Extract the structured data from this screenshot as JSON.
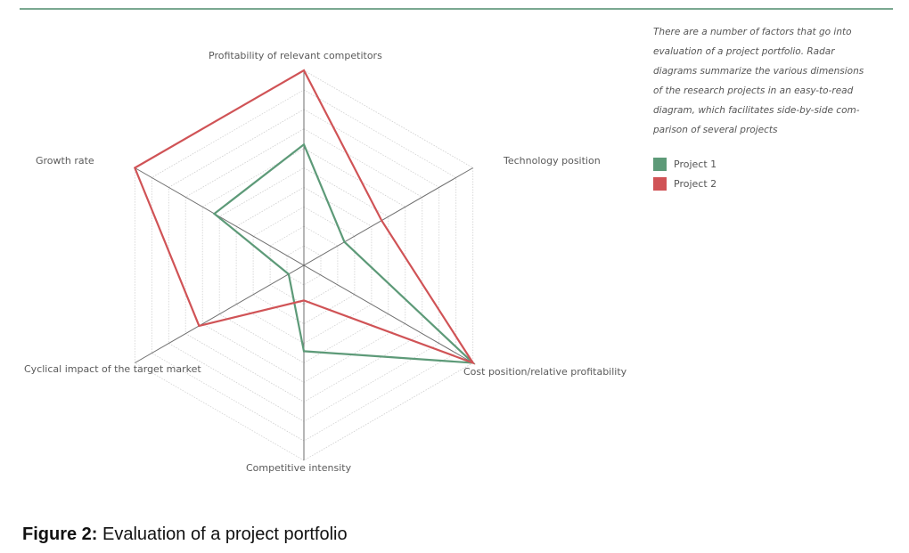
{
  "chart_data": {
    "type": "radar",
    "axes": [
      "Profitability of relevant competitors",
      "Technology position",
      "Cost position/relative profitability",
      "Competitive intensity",
      "Cyclical impact of the target market",
      "Growth rate"
    ],
    "scale": [
      0,
      10
    ],
    "grid": true,
    "legend_placement": "right",
    "series": [
      {
        "name": "Project 1",
        "color": "#5d9a78",
        "values": [
          6.2,
          2.4,
          10,
          4.4,
          0.9,
          5.3
        ]
      },
      {
        "name": "Project 2",
        "color": "#d05356",
        "values": [
          10,
          4.6,
          10,
          1.8,
          6.2,
          10
        ]
      }
    ]
  },
  "side_text": {
    "lines": [
      "There are a number of factors that go into",
      "evaluation of a project portfolio. Radar",
      "diagrams summarize the various dimensions",
      "of the research projects in an easy-to-read",
      "diagram, which facilitates side-by-side com-",
      "parison of several projects"
    ]
  },
  "caption": {
    "label": "Figure 2:",
    "text": " Evaluation of a project portfolio"
  }
}
